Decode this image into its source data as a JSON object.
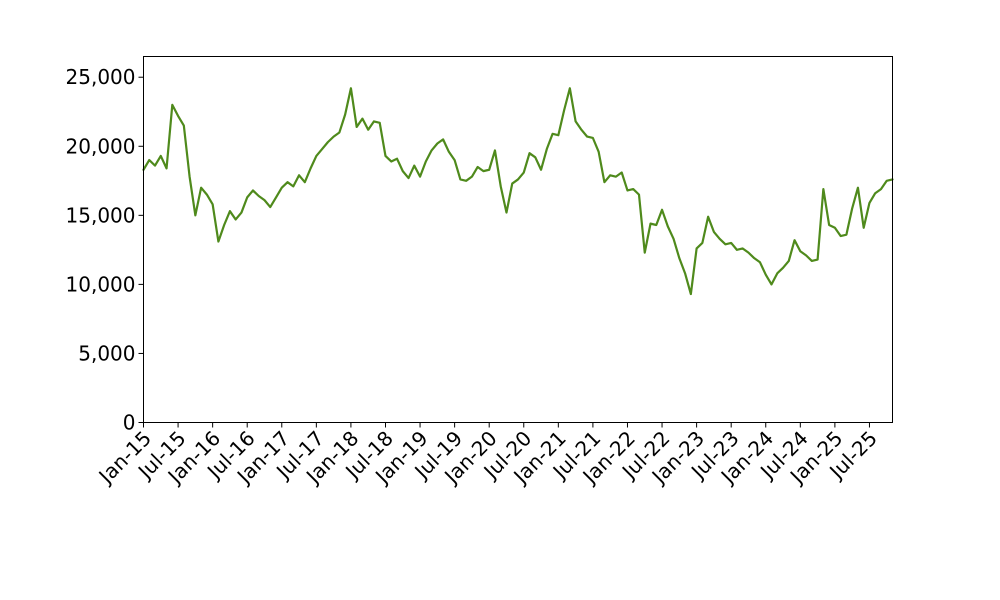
{
  "chart_data": {
    "type": "line",
    "title": "",
    "xlabel": "",
    "ylabel": "",
    "xlim": [
      "2015-01",
      "2025-11"
    ],
    "ylim": [
      0,
      26500
    ],
    "grid": false,
    "legend": "none",
    "yticks": [
      {
        "value": 0,
        "label": "0"
      },
      {
        "value": 5000,
        "label": "5,000"
      },
      {
        "value": 10000,
        "label": "10,000"
      },
      {
        "value": 15000,
        "label": "15,000"
      },
      {
        "value": 20000,
        "label": "20,000"
      },
      {
        "value": 25000,
        "label": "25,000"
      }
    ],
    "xticks": [
      {
        "value": "2015-01",
        "label": "Jan-15"
      },
      {
        "value": "2015-07",
        "label": "Jul-15"
      },
      {
        "value": "2016-01",
        "label": "Jan-16"
      },
      {
        "value": "2016-07",
        "label": "Jul-16"
      },
      {
        "value": "2017-01",
        "label": "Jan-17"
      },
      {
        "value": "2017-07",
        "label": "Jul-17"
      },
      {
        "value": "2018-01",
        "label": "Jan-18"
      },
      {
        "value": "2018-07",
        "label": "Jul-18"
      },
      {
        "value": "2019-01",
        "label": "Jan-19"
      },
      {
        "value": "2019-07",
        "label": "Jul-19"
      },
      {
        "value": "2020-01",
        "label": "Jan-20"
      },
      {
        "value": "2020-07",
        "label": "Jul-20"
      },
      {
        "value": "2021-01",
        "label": "Jan-21"
      },
      {
        "value": "2021-07",
        "label": "Jul-21"
      },
      {
        "value": "2022-01",
        "label": "Jan-22"
      },
      {
        "value": "2022-07",
        "label": "Jul-22"
      },
      {
        "value": "2023-01",
        "label": "Jan-23"
      },
      {
        "value": "2023-07",
        "label": "Jul-23"
      },
      {
        "value": "2024-01",
        "label": "Jan-24"
      },
      {
        "value": "2024-07",
        "label": "Jul-24"
      },
      {
        "value": "2025-01",
        "label": "Jan-25"
      },
      {
        "value": "2025-07",
        "label": "Jul-25"
      }
    ],
    "series": [
      {
        "color": "#4f8a1c",
        "points": [
          [
            "2015-01",
            18300
          ],
          [
            "2015-02",
            19000
          ],
          [
            "2015-03",
            18600
          ],
          [
            "2015-04",
            19300
          ],
          [
            "2015-05",
            18400
          ],
          [
            "2015-06",
            23000
          ],
          [
            "2015-07",
            22200
          ],
          [
            "2015-08",
            21500
          ],
          [
            "2015-09",
            17800
          ],
          [
            "2015-10",
            15000
          ],
          [
            "2015-11",
            17000
          ],
          [
            "2015-12",
            16500
          ],
          [
            "2016-01",
            15800
          ],
          [
            "2016-02",
            13100
          ],
          [
            "2016-03",
            14300
          ],
          [
            "2016-04",
            15300
          ],
          [
            "2016-05",
            14700
          ],
          [
            "2016-06",
            15200
          ],
          [
            "2016-07",
            16300
          ],
          [
            "2016-08",
            16800
          ],
          [
            "2016-09",
            16400
          ],
          [
            "2016-10",
            16100
          ],
          [
            "2016-11",
            15600
          ],
          [
            "2016-12",
            16300
          ],
          [
            "2017-01",
            17000
          ],
          [
            "2017-02",
            17400
          ],
          [
            "2017-03",
            17100
          ],
          [
            "2017-04",
            17900
          ],
          [
            "2017-05",
            17400
          ],
          [
            "2017-06",
            18400
          ],
          [
            "2017-07",
            19300
          ],
          [
            "2017-08",
            19800
          ],
          [
            "2017-09",
            20300
          ],
          [
            "2017-10",
            20700
          ],
          [
            "2017-11",
            21000
          ],
          [
            "2017-12",
            22300
          ],
          [
            "2018-01",
            24200
          ],
          [
            "2018-02",
            21400
          ],
          [
            "2018-03",
            22000
          ],
          [
            "2018-04",
            21200
          ],
          [
            "2018-05",
            21800
          ],
          [
            "2018-06",
            21700
          ],
          [
            "2018-07",
            19300
          ],
          [
            "2018-08",
            18900
          ],
          [
            "2018-09",
            19100
          ],
          [
            "2018-10",
            18200
          ],
          [
            "2018-11",
            17700
          ],
          [
            "2018-12",
            18600
          ],
          [
            "2019-01",
            17800
          ],
          [
            "2019-02",
            18900
          ],
          [
            "2019-03",
            19700
          ],
          [
            "2019-04",
            20200
          ],
          [
            "2019-05",
            20500
          ],
          [
            "2019-06",
            19600
          ],
          [
            "2019-07",
            19000
          ],
          [
            "2019-08",
            17600
          ],
          [
            "2019-09",
            17500
          ],
          [
            "2019-10",
            17800
          ],
          [
            "2019-11",
            18500
          ],
          [
            "2019-12",
            18200
          ],
          [
            "2020-01",
            18300
          ],
          [
            "2020-02",
            19700
          ],
          [
            "2020-03",
            17100
          ],
          [
            "2020-04",
            15200
          ],
          [
            "2020-05",
            17300
          ],
          [
            "2020-06",
            17600
          ],
          [
            "2020-07",
            18100
          ],
          [
            "2020-08",
            19500
          ],
          [
            "2020-09",
            19200
          ],
          [
            "2020-10",
            18300
          ],
          [
            "2020-11",
            19800
          ],
          [
            "2020-12",
            20900
          ],
          [
            "2021-01",
            20800
          ],
          [
            "2021-02",
            22600
          ],
          [
            "2021-03",
            24200
          ],
          [
            "2021-04",
            21800
          ],
          [
            "2021-05",
            21200
          ],
          [
            "2021-06",
            20700
          ],
          [
            "2021-07",
            20600
          ],
          [
            "2021-08",
            19600
          ],
          [
            "2021-09",
            17400
          ],
          [
            "2021-10",
            17900
          ],
          [
            "2021-11",
            17800
          ],
          [
            "2021-12",
            18100
          ],
          [
            "2022-01",
            16800
          ],
          [
            "2022-02",
            16900
          ],
          [
            "2022-03",
            16500
          ],
          [
            "2022-04",
            12300
          ],
          [
            "2022-05",
            14400
          ],
          [
            "2022-06",
            14300
          ],
          [
            "2022-07",
            15400
          ],
          [
            "2022-08",
            14200
          ],
          [
            "2022-09",
            13300
          ],
          [
            "2022-10",
            11900
          ],
          [
            "2022-11",
            10800
          ],
          [
            "2022-12",
            9300
          ],
          [
            "2023-01",
            12600
          ],
          [
            "2023-02",
            13000
          ],
          [
            "2023-03",
            14900
          ],
          [
            "2023-04",
            13800
          ],
          [
            "2023-05",
            13300
          ],
          [
            "2023-06",
            12900
          ],
          [
            "2023-07",
            13000
          ],
          [
            "2023-08",
            12500
          ],
          [
            "2023-09",
            12600
          ],
          [
            "2023-10",
            12300
          ],
          [
            "2023-11",
            11900
          ],
          [
            "2023-12",
            11600
          ],
          [
            "2024-01",
            10700
          ],
          [
            "2024-02",
            10000
          ],
          [
            "2024-03",
            10800
          ],
          [
            "2024-04",
            11200
          ],
          [
            "2024-05",
            11700
          ],
          [
            "2024-06",
            13200
          ],
          [
            "2024-07",
            12400
          ],
          [
            "2024-08",
            12100
          ],
          [
            "2024-09",
            11700
          ],
          [
            "2024-10",
            11800
          ],
          [
            "2024-11",
            16900
          ],
          [
            "2024-12",
            14300
          ],
          [
            "2025-01",
            14100
          ],
          [
            "2025-02",
            13500
          ],
          [
            "2025-03",
            13600
          ],
          [
            "2025-04",
            15500
          ],
          [
            "2025-05",
            17000
          ],
          [
            "2025-06",
            14100
          ],
          [
            "2025-07",
            15900
          ],
          [
            "2025-08",
            16600
          ],
          [
            "2025-09",
            16900
          ],
          [
            "2025-10",
            17500
          ],
          [
            "2025-11",
            17600
          ]
        ]
      }
    ]
  }
}
